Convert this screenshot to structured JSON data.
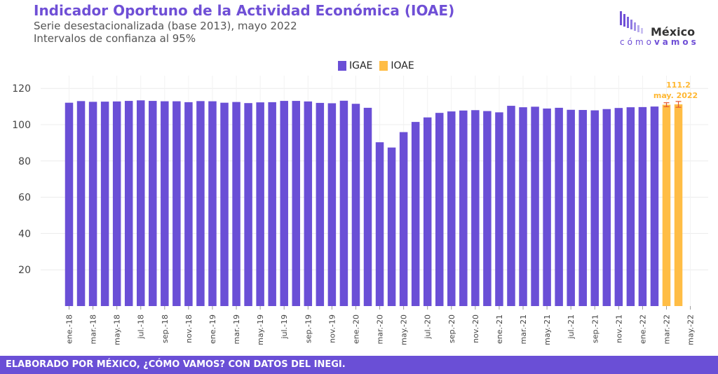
{
  "header": {
    "title": "Indicador Oportuno de la Actividad Económica (IOAE)",
    "subtitle1": "Serie desestacionalizada (base 2013), mayo 2022",
    "subtitle2": "Intervalos de confianza al 95%"
  },
  "logo": {
    "word": "México",
    "sub_light": "cómo",
    "sub_bold": "vamos"
  },
  "legend": {
    "igae": "IGAE",
    "ioae": "IOAE"
  },
  "colors": {
    "igae": "#6a4fd6",
    "ioae": "#ffbd45",
    "error": "#e4572e",
    "brand": "#6f4fd6"
  },
  "footer": {
    "text": "ELABORADO POR MÉXICO, ¿CÓMO VAMOS? CON DATOS DEL INEGI."
  },
  "chart_data": {
    "type": "bar",
    "ylim": [
      0,
      125
    ],
    "yticks": [
      20,
      40,
      60,
      80,
      100,
      120
    ],
    "xtick_labels": [
      "ene.-18",
      "mar.-18",
      "may.-18",
      "jul.-18",
      "sep.-18",
      "nov.-18",
      "ene.-19",
      "mar.-19",
      "may.-19",
      "jul.-19",
      "sep.-19",
      "nov.-19",
      "ene.-20",
      "mar.-20",
      "may.-20",
      "jul.-20",
      "sep.-20",
      "nov.-20",
      "ene.-21",
      "mar.-21",
      "may.-21",
      "jul.-21",
      "sep.-21",
      "nov.-21",
      "ene.-22",
      "mar.-22",
      "may.-22"
    ],
    "igae_values": [
      112.1,
      113.0,
      112.6,
      112.7,
      112.8,
      113.1,
      113.4,
      113.1,
      112.9,
      112.9,
      112.4,
      113.0,
      112.9,
      112.1,
      112.5,
      111.9,
      112.3,
      112.4,
      113.1,
      113.1,
      112.8,
      112.0,
      111.8,
      113.2,
      111.5,
      109.3,
      90.3,
      87.4,
      95.9,
      101.5,
      104.0,
      106.5,
      107.3,
      107.8,
      108.0,
      107.5,
      106.8,
      110.4,
      109.6,
      109.9,
      108.9,
      109.3,
      108.2,
      108.1,
      107.9,
      108.6,
      109.2,
      109.6,
      109.7,
      110.0
    ],
    "ioae_values": [
      111.0,
      111.2
    ],
    "ioae_error": [
      [
        109.9,
        112.1
      ],
      [
        109.6,
        112.8
      ]
    ],
    "annotation_value": "111.2",
    "annotation_label": "may. 2022"
  }
}
